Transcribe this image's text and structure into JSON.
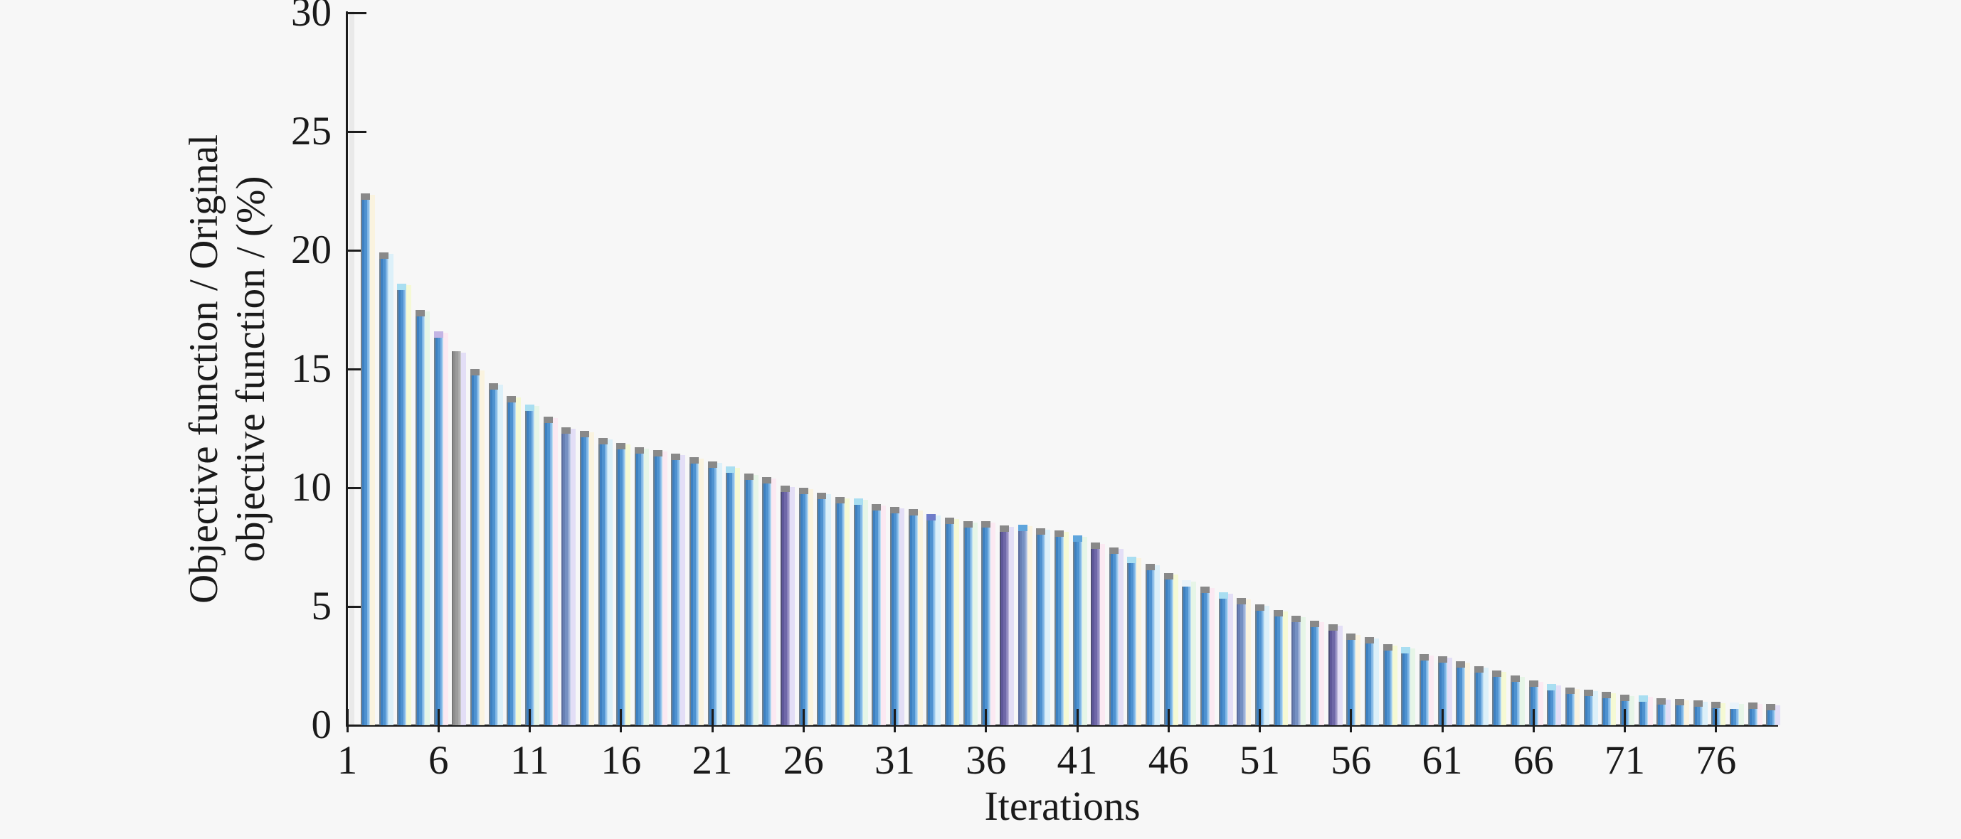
{
  "chart_data": {
    "type": "bar",
    "title": "",
    "xlabel": "Iterations",
    "ylabel_line1": "Objective function / Original",
    "ylabel_line2": "objective function / (%)",
    "ylim": [
      0,
      30
    ],
    "yticks": [
      0,
      5,
      10,
      15,
      20,
      25,
      30
    ],
    "xtick_labels": [
      "1",
      "6",
      "11",
      "16",
      "21",
      "26",
      "31",
      "36",
      "41",
      "46",
      "51",
      "56",
      "61",
      "66",
      "71",
      "76"
    ],
    "xtick_positions": [
      0,
      5,
      10,
      15,
      20,
      25,
      30,
      35,
      40,
      45,
      50,
      55,
      60,
      65,
      70,
      75
    ],
    "grid": false,
    "legend": "none",
    "categories_note": "iterations 1..78",
    "values": [
      22.4,
      19.9,
      18.6,
      17.5,
      16.6,
      15.75,
      15.0,
      14.4,
      13.85,
      13.5,
      13.0,
      12.55,
      12.4,
      12.1,
      11.9,
      11.7,
      11.6,
      11.45,
      11.3,
      11.1,
      10.9,
      10.6,
      10.45,
      10.1,
      10.0,
      9.8,
      9.6,
      9.55,
      9.3,
      9.2,
      9.1,
      8.9,
      8.75,
      8.6,
      8.6,
      8.4,
      8.45,
      8.3,
      8.2,
      8.0,
      7.7,
      7.5,
      7.1,
      6.8,
      6.4,
      6.1,
      5.85,
      5.6,
      5.35,
      5.1,
      4.85,
      4.6,
      4.4,
      4.25,
      3.85,
      3.7,
      3.4,
      3.3,
      3.0,
      2.9,
      2.7,
      2.5,
      2.3,
      2.1,
      1.9,
      1.75,
      1.6,
      1.5,
      1.4,
      1.3,
      1.25,
      1.15,
      1.1,
      1.05,
      1.0,
      0.95,
      0.95,
      0.9
    ],
    "bar_variant_overrides": {
      "6": "gray",
      "12": "slate",
      "24": "purple",
      "36": "purple",
      "37": "slate",
      "41": "purple",
      "49": "slate",
      "52": "slate",
      "54": "purple"
    },
    "cap_overrides": {
      "3": "cyan",
      "5": "lavender",
      "10": "cyan",
      "21": "cyan",
      "28": "cyan",
      "32": "indigo",
      "37": "blue",
      "40": "blue",
      "43": "cyan",
      "46": "white",
      "48": "cyan",
      "58": "cyan",
      "66": "cyan",
      "71": "cyan",
      "76": "white"
    },
    "halo_cycle": [
      "cream",
      "cyan",
      "yellow",
      "green",
      "pink",
      "lavender"
    ],
    "colors": {
      "background": "#f7f7f7",
      "axis": "#1c1c1c",
      "bar_blue": [
        "#70808e",
        "#3d80c1",
        "#4e92d0",
        "#7fb5e5",
        "#bedff2"
      ],
      "bar_gray": [
        "#777777",
        "#8e8e8e",
        "#9b9b9b",
        "#ababab",
        "#c9c9c9"
      ],
      "bar_purple": [
        "#4e4e76",
        "#5f589a",
        "#6f68a8",
        "#8b84bd",
        "#b9b4d8"
      ],
      "bar_slate": [
        "#5d6f9e",
        "#6780b4",
        "#7590c2",
        "#93a8d2",
        "#c2cfe8"
      ],
      "cap_gray": "#898989",
      "cap_cyan": "#a9def1",
      "cap_lavender": "#c3b4e4",
      "cap_indigo": "#6f7cc9",
      "cap_blue": "#5fa5dc",
      "cap_white": "#e9f3fa",
      "halo_cream": "#faf2dc",
      "halo_cyan": "#d8eef8",
      "halo_yellow": "#f4f8cf",
      "halo_green": "#e3f4e4",
      "halo_pink": "#fbe7f1",
      "halo_lavender": "#e0daf5"
    }
  }
}
